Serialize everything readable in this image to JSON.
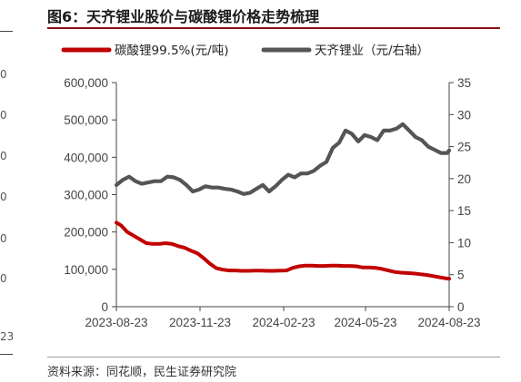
{
  "figure": {
    "title": "图6：天齐锂业股价与碳酸锂价格走势梳理",
    "source": "资料来源：同花顺，民生证券研究院"
  },
  "left_cropped": {
    "labels": [
      "0",
      "0",
      "0",
      "0",
      "0",
      "0",
      "23"
    ]
  },
  "colors": {
    "title_rule": "#8a0e12",
    "lithium_carbonate": "#c00000",
    "tianqi": "#555555",
    "axis": "#444444"
  },
  "chart_data": {
    "type": "line",
    "legend_position": "top",
    "grid": false,
    "x_ticks": [
      "2023-08-23",
      "2023-11-23",
      "2024-02-23",
      "2024-05-23",
      "2024-08-23"
    ],
    "x_range": [
      "2023-08-23",
      "2024-08-23"
    ],
    "y_left": {
      "range": [
        0,
        600000
      ],
      "ticks": [
        "0",
        "100,000",
        "200,000",
        "300,000",
        "400,000",
        "500,000",
        "600,000"
      ]
    },
    "y_right": {
      "range": [
        0,
        35
      ],
      "ticks": [
        "0",
        "5",
        "10",
        "15",
        "20",
        "25",
        "30",
        "35"
      ]
    },
    "series": [
      {
        "name": "碳酸锂99.5%(元/吨)",
        "axis": "left",
        "color": "#c00000",
        "x": [
          "2023-08-23",
          "2023-08-28",
          "2023-09-04",
          "2023-09-11",
          "2023-09-18",
          "2023-09-25",
          "2023-10-02",
          "2023-10-09",
          "2023-10-16",
          "2023-10-23",
          "2023-10-30",
          "2023-11-06",
          "2023-11-13",
          "2023-11-20",
          "2023-11-27",
          "2023-12-04",
          "2023-12-11",
          "2023-12-18",
          "2023-12-25",
          "2024-01-01",
          "2024-01-08",
          "2024-01-15",
          "2024-01-22",
          "2024-01-29",
          "2024-02-05",
          "2024-02-12",
          "2024-02-19",
          "2024-02-26",
          "2024-03-04",
          "2024-03-11",
          "2024-03-18",
          "2024-03-25",
          "2024-04-01",
          "2024-04-08",
          "2024-04-15",
          "2024-04-22",
          "2024-04-29",
          "2024-05-06",
          "2024-05-13",
          "2024-05-20",
          "2024-05-27",
          "2024-06-03",
          "2024-06-10",
          "2024-06-17",
          "2024-06-24",
          "2024-07-01",
          "2024-07-08",
          "2024-07-15",
          "2024-07-22",
          "2024-07-29",
          "2024-08-05",
          "2024-08-12",
          "2024-08-19",
          "2024-08-23"
        ],
        "values": [
          225000,
          218000,
          200000,
          190000,
          180000,
          170000,
          168000,
          168000,
          170000,
          168000,
          162000,
          158000,
          150000,
          143000,
          130000,
          115000,
          103000,
          99000,
          97000,
          97000,
          96000,
          96000,
          96500,
          96500,
          96000,
          96000,
          96500,
          97000,
          104000,
          108000,
          110000,
          110000,
          109000,
          109000,
          110000,
          110000,
          109000,
          109000,
          108000,
          105000,
          105000,
          104000,
          101000,
          97000,
          93000,
          91000,
          90000,
          89000,
          87000,
          85000,
          82000,
          79000,
          76000,
          75000
        ]
      },
      {
        "name": "天齐锂业（元/右轴）",
        "axis": "right",
        "color": "#555555",
        "x": [
          "2023-08-23",
          "2023-08-30",
          "2023-09-06",
          "2023-09-13",
          "2023-09-20",
          "2023-09-27",
          "2023-10-04",
          "2023-10-11",
          "2023-10-18",
          "2023-10-25",
          "2023-11-01",
          "2023-11-08",
          "2023-11-15",
          "2023-11-22",
          "2023-11-29",
          "2023-12-06",
          "2023-12-13",
          "2023-12-20",
          "2023-12-27",
          "2024-01-03",
          "2024-01-10",
          "2024-01-17",
          "2024-01-24",
          "2024-01-31",
          "2024-02-07",
          "2024-02-14",
          "2024-02-21",
          "2024-02-28",
          "2024-03-06",
          "2024-03-13",
          "2024-03-20",
          "2024-03-27",
          "2024-04-03",
          "2024-04-10",
          "2024-04-17",
          "2024-04-24",
          "2024-05-01",
          "2024-05-08",
          "2024-05-15",
          "2024-05-22",
          "2024-05-29",
          "2024-06-05",
          "2024-06-12",
          "2024-06-19",
          "2024-06-26",
          "2024-07-03",
          "2024-07-10",
          "2024-07-17",
          "2024-07-24",
          "2024-07-31",
          "2024-08-07",
          "2024-08-14",
          "2024-08-21",
          "2024-08-23"
        ],
        "values": [
          19.0,
          19.8,
          20.3,
          19.6,
          19.2,
          19.4,
          19.6,
          19.6,
          20.3,
          20.2,
          19.8,
          19.0,
          18.0,
          18.3,
          18.8,
          18.6,
          18.6,
          18.4,
          18.3,
          18.0,
          17.6,
          17.8,
          18.4,
          19.0,
          18.0,
          18.8,
          19.8,
          20.6,
          20.2,
          20.8,
          20.8,
          21.2,
          22.0,
          22.6,
          24.8,
          25.6,
          27.5,
          27.0,
          25.8,
          26.8,
          26.5,
          26.0,
          27.5,
          27.5,
          27.8,
          28.5,
          27.5,
          26.5,
          26.0,
          25.0,
          24.5,
          24.0,
          24.0,
          24.4
        ]
      }
    ]
  }
}
